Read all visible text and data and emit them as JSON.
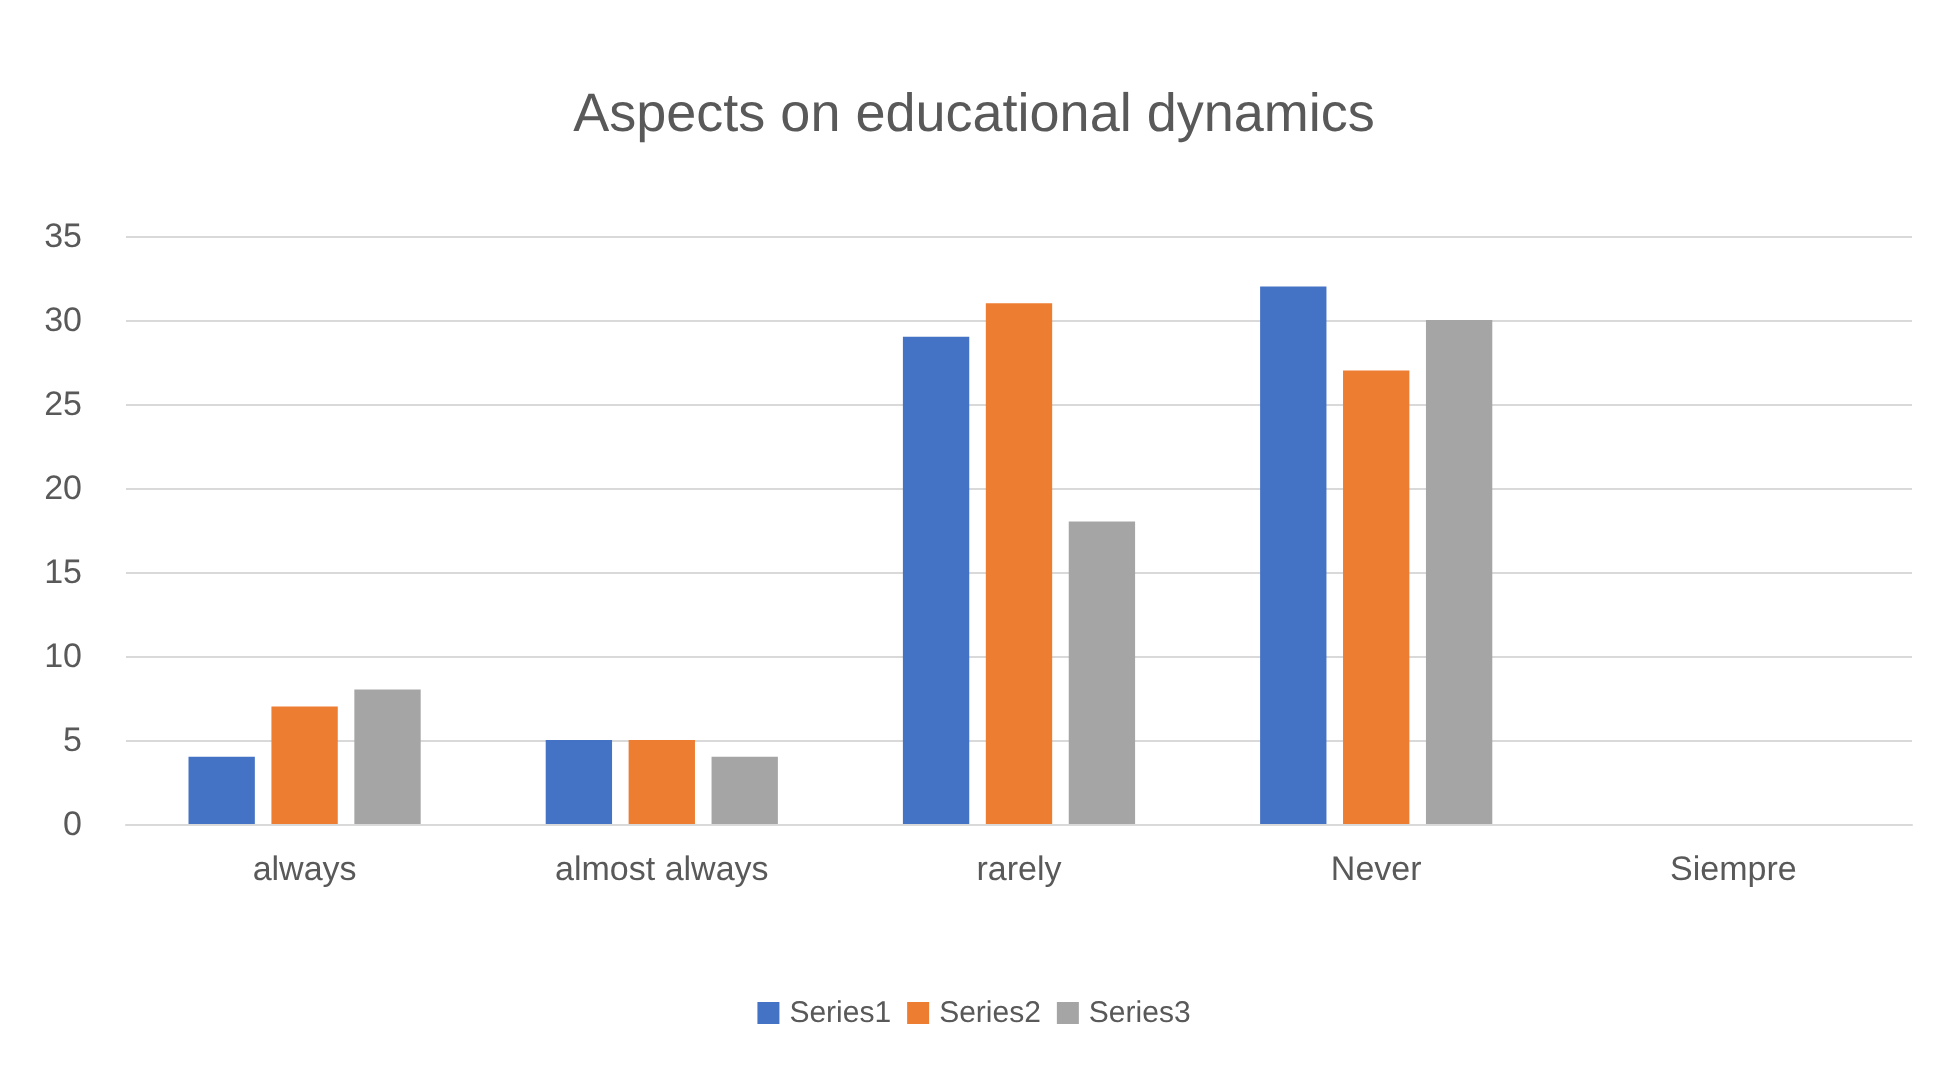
{
  "chart_data": {
    "type": "bar",
    "title": "Aspects on educational dynamics",
    "categories": [
      "always",
      "almost always",
      "rarely",
      "Never",
      "Siempre"
    ],
    "series": [
      {
        "name": "Series1",
        "color": "#4472c4",
        "values": [
          4,
          5,
          29,
          32,
          null
        ]
      },
      {
        "name": "Series2",
        "color": "#ed7d31",
        "values": [
          7,
          5,
          31,
          27,
          null
        ]
      },
      {
        "name": "Series3",
        "color": "#a5a5a5",
        "values": [
          8,
          4,
          18,
          30,
          null
        ]
      }
    ],
    "ylim": [
      0,
      35
    ],
    "yticks": [
      0,
      5,
      10,
      15,
      20,
      25,
      30,
      35
    ],
    "grid": "y",
    "legend": "bottom"
  }
}
